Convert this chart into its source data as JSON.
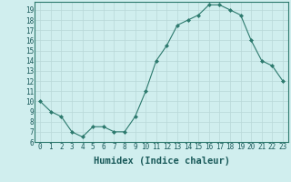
{
  "x": [
    0,
    1,
    2,
    3,
    4,
    5,
    6,
    7,
    8,
    9,
    10,
    11,
    12,
    13,
    14,
    15,
    16,
    17,
    18,
    19,
    20,
    21,
    22,
    23
  ],
  "y": [
    10,
    9,
    8.5,
    7,
    6.5,
    7.5,
    7.5,
    7,
    7,
    8.5,
    11,
    14,
    15.5,
    17.5,
    18,
    18.5,
    19.5,
    19.5,
    19,
    18.5,
    16,
    14,
    13.5,
    12
  ],
  "line_color": "#2d7a6e",
  "marker": "D",
  "marker_size": 2,
  "bg_color": "#d0eeee",
  "grid_color": "#b8d8d8",
  "xlabel": "Humidex (Indice chaleur)",
  "ylim": [
    6,
    19.8
  ],
  "xlim": [
    -0.5,
    23.5
  ],
  "yticks": [
    6,
    7,
    8,
    9,
    10,
    11,
    12,
    13,
    14,
    15,
    16,
    17,
    18,
    19
  ],
  "xticks": [
    0,
    1,
    2,
    3,
    4,
    5,
    6,
    7,
    8,
    9,
    10,
    11,
    12,
    13,
    14,
    15,
    16,
    17,
    18,
    19,
    20,
    21,
    22,
    23
  ],
  "tick_label_fontsize": 5.5,
  "xlabel_fontsize": 7.5
}
